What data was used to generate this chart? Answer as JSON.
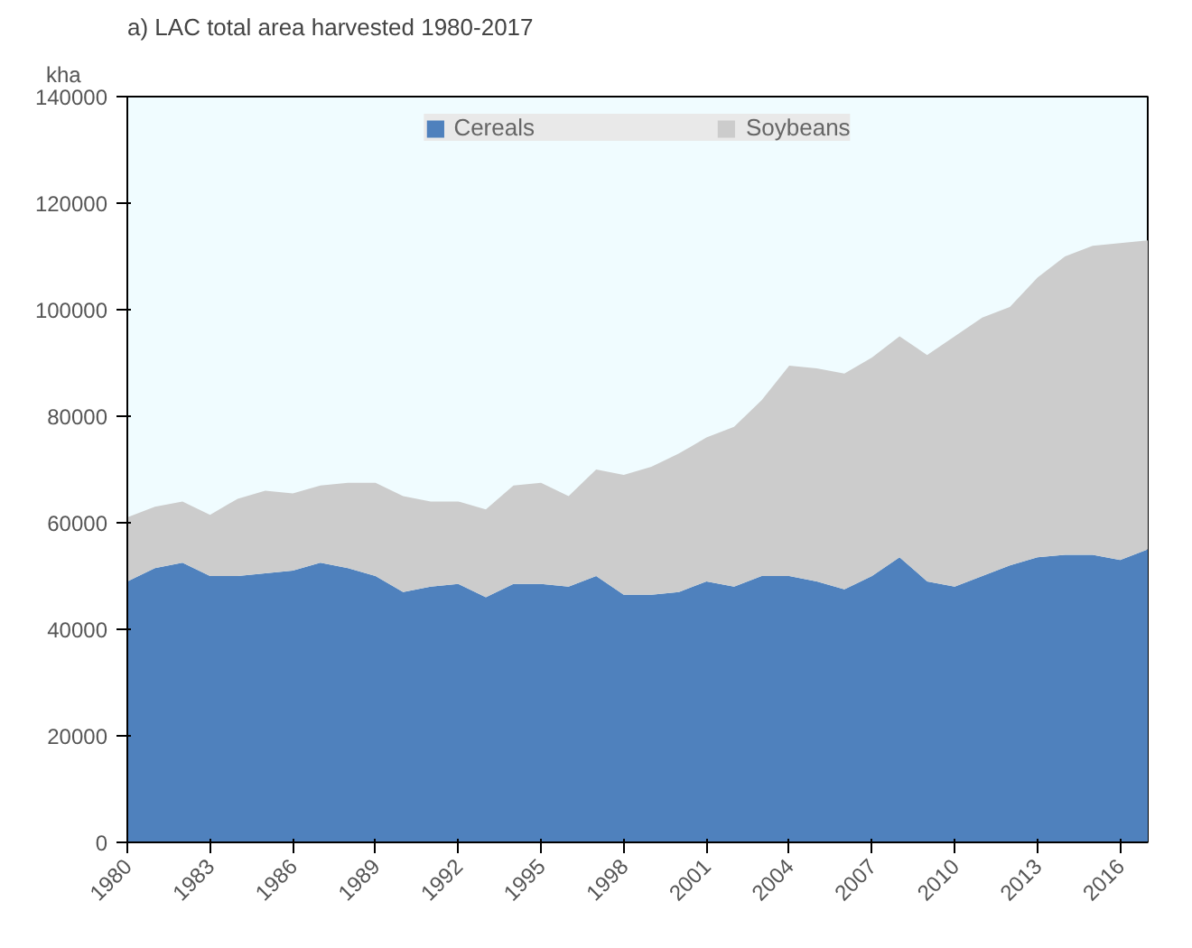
{
  "chart_data": {
    "type": "area",
    "stacked": true,
    "title": "a) LAC total area harvested 1980-2017",
    "ylabel": "kha",
    "x": [
      1980,
      1981,
      1982,
      1983,
      1984,
      1985,
      1986,
      1987,
      1988,
      1989,
      1990,
      1991,
      1992,
      1993,
      1994,
      1995,
      1996,
      1997,
      1998,
      1999,
      2000,
      2001,
      2002,
      2003,
      2004,
      2005,
      2006,
      2007,
      2008,
      2009,
      2010,
      2011,
      2012,
      2013,
      2014,
      2015,
      2016,
      2017
    ],
    "series": [
      {
        "name": "Cereals",
        "color": "#4f81bd",
        "values": [
          49000,
          51500,
          52500,
          50000,
          50000,
          50500,
          51000,
          52500,
          51500,
          50000,
          47000,
          48000,
          48500,
          46000,
          48500,
          48500,
          48000,
          50000,
          46500,
          46500,
          47000,
          49000,
          48000,
          50000,
          50000,
          49000,
          47500,
          50000,
          53500,
          49000,
          48000,
          50000,
          52000,
          53500,
          54000,
          54000,
          53000,
          55000
        ]
      },
      {
        "name": "Soybeans",
        "color": "#cccccc",
        "values": [
          12000,
          11500,
          11500,
          11500,
          14500,
          15500,
          14500,
          14500,
          16000,
          17500,
          18000,
          16000,
          15500,
          16500,
          18500,
          19000,
          17000,
          20000,
          22500,
          24000,
          26000,
          27000,
          30000,
          33000,
          39500,
          40000,
          40500,
          41000,
          41500,
          42500,
          47000,
          48500,
          48500,
          52500,
          56000,
          58000,
          59500,
          58000
        ]
      }
    ],
    "xlim": [
      1980,
      2017
    ],
    "xticks": [
      1980,
      1983,
      1986,
      1989,
      1992,
      1995,
      1998,
      2001,
      2004,
      2007,
      2010,
      2013,
      2016
    ],
    "ylim": [
      0,
      140000
    ],
    "yticks": [
      0,
      20000,
      40000,
      60000,
      80000,
      100000,
      120000,
      140000
    ],
    "legend": "top",
    "grid": false
  }
}
